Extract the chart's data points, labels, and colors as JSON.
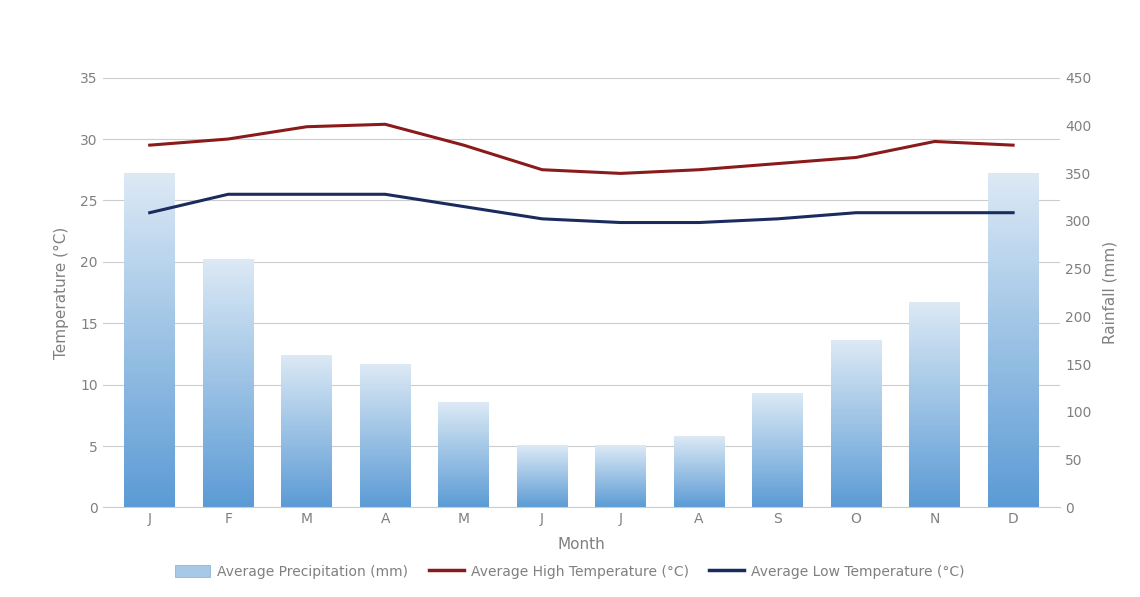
{
  "months": [
    "J",
    "F",
    "M",
    "A",
    "M",
    "J",
    "J",
    "A",
    "S",
    "O",
    "N",
    "D"
  ],
  "precipitation": [
    350,
    260,
    160,
    150,
    110,
    65,
    65,
    75,
    120,
    175,
    215,
    350
  ],
  "temp_high": [
    29.5,
    30.0,
    31.0,
    31.2,
    29.5,
    27.5,
    27.2,
    27.5,
    28.0,
    28.5,
    29.8,
    29.5
  ],
  "temp_low": [
    24.0,
    25.5,
    25.5,
    25.5,
    24.5,
    23.5,
    23.2,
    23.2,
    23.5,
    24.0,
    24.0,
    24.0
  ],
  "bar_color_bottom": "#5b9bd5",
  "bar_color_top": "#dce9f5",
  "line_high_color": "#8b1a1a",
  "line_low_color": "#1c2b5e",
  "temp_ylim": [
    0,
    35
  ],
  "rain_ylim": [
    0,
    450
  ],
  "temp_yticks": [
    0,
    5,
    10,
    15,
    20,
    25,
    30,
    35
  ],
  "rain_yticks": [
    0,
    50,
    100,
    150,
    200,
    250,
    300,
    350,
    400,
    450
  ],
  "xlabel": "Month",
  "ylabel_left": "Temperature (°C)",
  "ylabel_right": "Rainfall (mm)",
  "legend_precip": "Average Precipitation (mm)",
  "legend_high": "Average High Temperature (°C)",
  "legend_low": "Average Low Temperature (°C)",
  "background_color": "#ffffff",
  "grid_color": "#cccccc",
  "text_color": "#808080",
  "axis_fontsize": 11,
  "tick_fontsize": 10
}
